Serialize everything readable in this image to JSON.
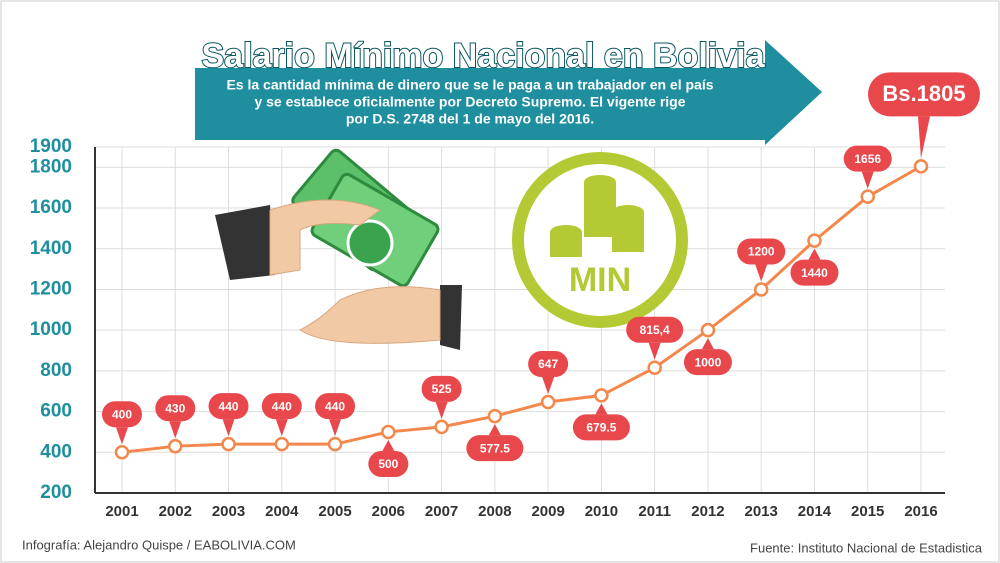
{
  "chart_data": {
    "type": "line",
    "title": "Salario Mínimo Nacional  en Bolivia",
    "subtitle": [
      "Es la cantidad mínima de dinero que se le paga a un trabajador en el país",
      "y se establece oficialmente por Decreto Supremo. El vigente rige",
      "por D.S. 2748 del 1 de mayo del 2016."
    ],
    "icon_text": "MIN",
    "credit": "Infografía: Alejandro Quispe / EABOLIVIA.COM",
    "source": "Fuente: Instituto Nacional de Estadistica",
    "categories": [
      "2001",
      "2002",
      "2003",
      "2004",
      "2005",
      "2006",
      "2007",
      "2008",
      "2009",
      "2010",
      "2011",
      "2012",
      "2013",
      "2014",
      "2015",
      "2016"
    ],
    "values": [
      400,
      430,
      440,
      440,
      440,
      500,
      525,
      577.5,
      647,
      679.5,
      815.4,
      1000,
      1200,
      1440,
      1656,
      1805
    ],
    "value_labels": [
      "400",
      "430",
      "440",
      "440",
      "440",
      "500",
      "525",
      "577.5",
      "647",
      "679.5",
      "815,4",
      "1000",
      "1200",
      "1440",
      "1656",
      "Bs.1805"
    ],
    "color": "#f4874b",
    "label_color": "#e8474c",
    "ylim": [
      200,
      1900
    ],
    "yticks": [
      200,
      400,
      600,
      800,
      1000,
      1200,
      1400,
      1600,
      1800,
      1900
    ],
    "grid": true
  }
}
